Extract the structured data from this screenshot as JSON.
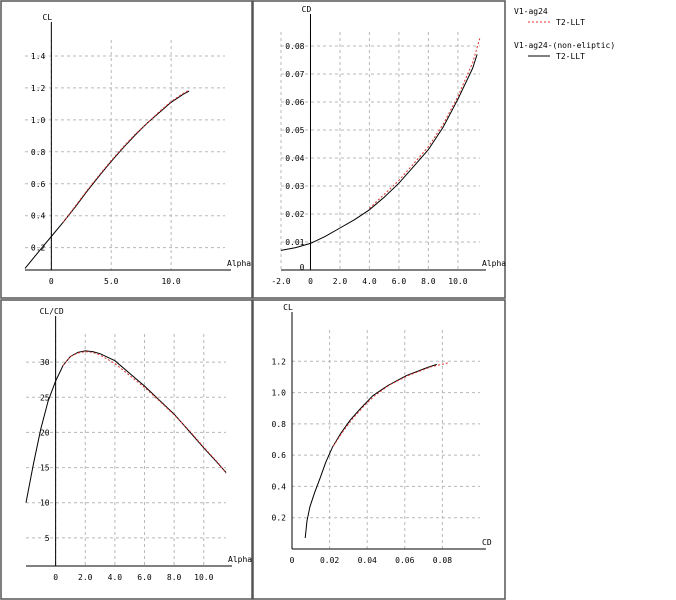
{
  "legend": {
    "groups": [
      {
        "title": "V1-ag24",
        "entry": "T2-LLT",
        "color": "#e0302a",
        "style": "dashed"
      },
      {
        "title": "V1-ag24-(non-eliptic)",
        "entry": "T2-LLT",
        "color": "#000000",
        "style": "solid"
      }
    ]
  },
  "chart_data": [
    {
      "type": "line",
      "xlabel": "Alpha",
      "ylabel": "CL",
      "xlim": [
        -2.2,
        14.5
      ],
      "ylim": [
        0.06,
        1.5
      ],
      "xticks": [
        0,
        5,
        10
      ],
      "xtick_labels": [
        "0",
        "5.0",
        "10.0"
      ],
      "yticks": [
        0.2,
        0.4,
        0.6,
        0.8,
        1.0,
        1.2,
        1.4
      ],
      "ytick_labels": [
        "0.2",
        "0.4",
        "0.6",
        "0.8",
        "1.0",
        "1.2",
        "1.4"
      ],
      "grid": true,
      "series": [
        {
          "name": "V1-ag24 T2-LLT",
          "color": "#e0302a",
          "style": "dashed",
          "x": [
            1,
            2,
            3,
            4,
            5,
            6,
            7,
            8,
            9,
            10,
            11,
            11.5
          ],
          "y": [
            0.36,
            0.46,
            0.56,
            0.655,
            0.745,
            0.83,
            0.91,
            0.98,
            1.05,
            1.115,
            1.165,
            1.185
          ]
        },
        {
          "name": "V1-ag24-(non-eliptic) T2-LLT",
          "color": "#000000",
          "style": "solid",
          "x": [
            -2.2,
            -1,
            0,
            1,
            2,
            3,
            4,
            5,
            6,
            7,
            8,
            9,
            10,
            11,
            11.5
          ],
          "y": [
            0.07,
            0.18,
            0.27,
            0.36,
            0.455,
            0.555,
            0.65,
            0.74,
            0.825,
            0.905,
            0.98,
            1.045,
            1.11,
            1.16,
            1.18
          ]
        }
      ]
    },
    {
      "type": "line",
      "xlabel": "Alpha",
      "ylabel": "CD",
      "xlim": [
        -2.0,
        11.5
      ],
      "ylim": [
        0,
        0.085
      ],
      "xticks": [
        -2,
        0,
        2,
        4,
        6,
        8,
        10
      ],
      "xtick_labels": [
        "-2.0",
        "0",
        "2.0",
        "4.0",
        "6.0",
        "8.0",
        "10.0"
      ],
      "yticks": [
        0,
        0.01,
        0.02,
        0.03,
        0.04,
        0.05,
        0.06,
        0.07,
        0.08
      ],
      "ytick_labels": [
        "0",
        "0.01",
        "0.02",
        "0.03",
        "0.04",
        "0.05",
        "0.06",
        "0.07",
        "0.08"
      ],
      "grid": true,
      "series": [
        {
          "name": "V1-ag24 T2-LLT",
          "color": "#e0302a",
          "style": "dashed",
          "x": [
            4,
            5,
            6,
            7,
            8,
            9,
            10,
            11,
            11.5
          ],
          "y": [
            0.022,
            0.027,
            0.032,
            0.038,
            0.044,
            0.052,
            0.062,
            0.074,
            0.083
          ]
        },
        {
          "name": "V1-ag24-(non-eliptic) T2-LLT",
          "color": "#000000",
          "style": "solid",
          "x": [
            -2,
            -1,
            0,
            1,
            2,
            3,
            4,
            5,
            6,
            7,
            8,
            9,
            10,
            11,
            11.3
          ],
          "y": [
            0.007,
            0.008,
            0.0095,
            0.012,
            0.015,
            0.018,
            0.0215,
            0.026,
            0.031,
            0.037,
            0.043,
            0.051,
            0.061,
            0.072,
            0.077
          ]
        }
      ]
    },
    {
      "type": "line",
      "xlabel": "Alpha",
      "ylabel": "CL/CD",
      "xlim": [
        -2.0,
        11.5
      ],
      "ylim": [
        1,
        34
      ],
      "xticks": [
        0,
        2,
        4,
        6,
        8,
        10
      ],
      "xtick_labels": [
        "0",
        "2.0",
        "4.0",
        "6.0",
        "8.0",
        "10.0"
      ],
      "yticks": [
        5,
        10,
        15,
        20,
        25,
        30
      ],
      "ytick_labels": [
        "5",
        "10",
        "15",
        "20",
        "25",
        "30"
      ],
      "grid": true,
      "series": [
        {
          "name": "V1-ag24 T2-LLT",
          "color": "#e0302a",
          "style": "dashed",
          "x": [
            0.5,
            1,
            1.5,
            2,
            2.5,
            3,
            4,
            5,
            6,
            7,
            8,
            9,
            10,
            11,
            11.5
          ],
          "y": [
            29.5,
            30.8,
            31.3,
            31.5,
            31.4,
            31.0,
            29.8,
            28.1,
            26.4,
            24.5,
            22.5,
            20.3,
            17.9,
            15.6,
            14.2
          ]
        },
        {
          "name": "V1-ag24-(non-eliptic) T2-LLT",
          "color": "#000000",
          "style": "solid",
          "x": [
            -2,
            -1.5,
            -1,
            -0.5,
            0,
            0.5,
            1,
            1.5,
            2,
            2.5,
            3,
            4,
            5,
            6,
            7,
            8,
            9,
            10,
            11,
            11.5
          ],
          "y": [
            10,
            15.5,
            20.5,
            24.5,
            27.3,
            29.5,
            30.8,
            31.4,
            31.6,
            31.5,
            31.2,
            30.2,
            28.4,
            26.6,
            24.6,
            22.6,
            20.2,
            17.8,
            15.5,
            14.3
          ]
        }
      ]
    },
    {
      "type": "line",
      "xlabel": "CD",
      "ylabel": "CL",
      "xlim": [
        0,
        0.1
      ],
      "ylim": [
        0,
        1.4
      ],
      "xticks": [
        0,
        0.02,
        0.04,
        0.06,
        0.08
      ],
      "xtick_labels": [
        "0",
        "0.02",
        "0.04",
        "0.06",
        "0.08"
      ],
      "yticks": [
        0.2,
        0.4,
        0.6,
        0.8,
        1.0,
        1.2
      ],
      "ytick_labels": [
        "0.2",
        "0.4",
        "0.6",
        "0.8",
        "1.0",
        "1.2"
      ],
      "grid": true,
      "series": [
        {
          "name": "V1-ag24 T2-LLT",
          "color": "#e0302a",
          "style": "dashed",
          "x": [
            0.022,
            0.027,
            0.032,
            0.038,
            0.044,
            0.052,
            0.062,
            0.074,
            0.083
          ],
          "y": [
            0.66,
            0.75,
            0.83,
            0.91,
            0.98,
            1.05,
            1.11,
            1.165,
            1.19
          ]
        },
        {
          "name": "V1-ag24-(non-eliptic) T2-LLT",
          "color": "#000000",
          "style": "solid",
          "x": [
            0.007,
            0.008,
            0.0095,
            0.012,
            0.015,
            0.018,
            0.0215,
            0.026,
            0.031,
            0.037,
            0.043,
            0.051,
            0.061,
            0.072,
            0.077
          ],
          "y": [
            0.07,
            0.18,
            0.27,
            0.36,
            0.455,
            0.555,
            0.65,
            0.74,
            0.825,
            0.905,
            0.98,
            1.045,
            1.11,
            1.16,
            1.18
          ]
        }
      ]
    }
  ]
}
